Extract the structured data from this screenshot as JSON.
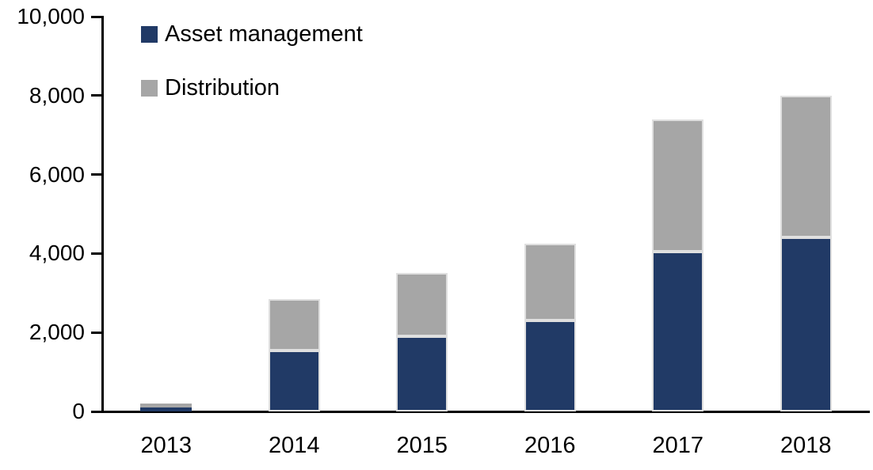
{
  "chart_data": {
    "type": "bar",
    "stacked": true,
    "title": "",
    "xlabel": "",
    "ylabel": "",
    "categories": [
      "2013",
      "2014",
      "2015",
      "2016",
      "2017",
      "2018"
    ],
    "series": [
      {
        "name": "Asset management",
        "color": "#213a66",
        "values": [
          100,
          1550,
          1900,
          2300,
          4050,
          4400
        ]
      },
      {
        "name": "Distribution",
        "color": "#a6a6a6",
        "values": [
          100,
          1300,
          1600,
          1950,
          3350,
          3600
        ]
      }
    ],
    "totals": [
      200,
      2850,
      3500,
      4250,
      7400,
      8000
    ],
    "ylim": [
      0,
      10000
    ],
    "yticks": [
      0,
      2000,
      4000,
      6000,
      8000,
      10000
    ],
    "ytick_labels": [
      "0",
      "2,000",
      "4,000",
      "6,000",
      "8,000",
      "10,000"
    ],
    "legend_position": "top-left",
    "grid": false,
    "axis_color": "#000000"
  }
}
